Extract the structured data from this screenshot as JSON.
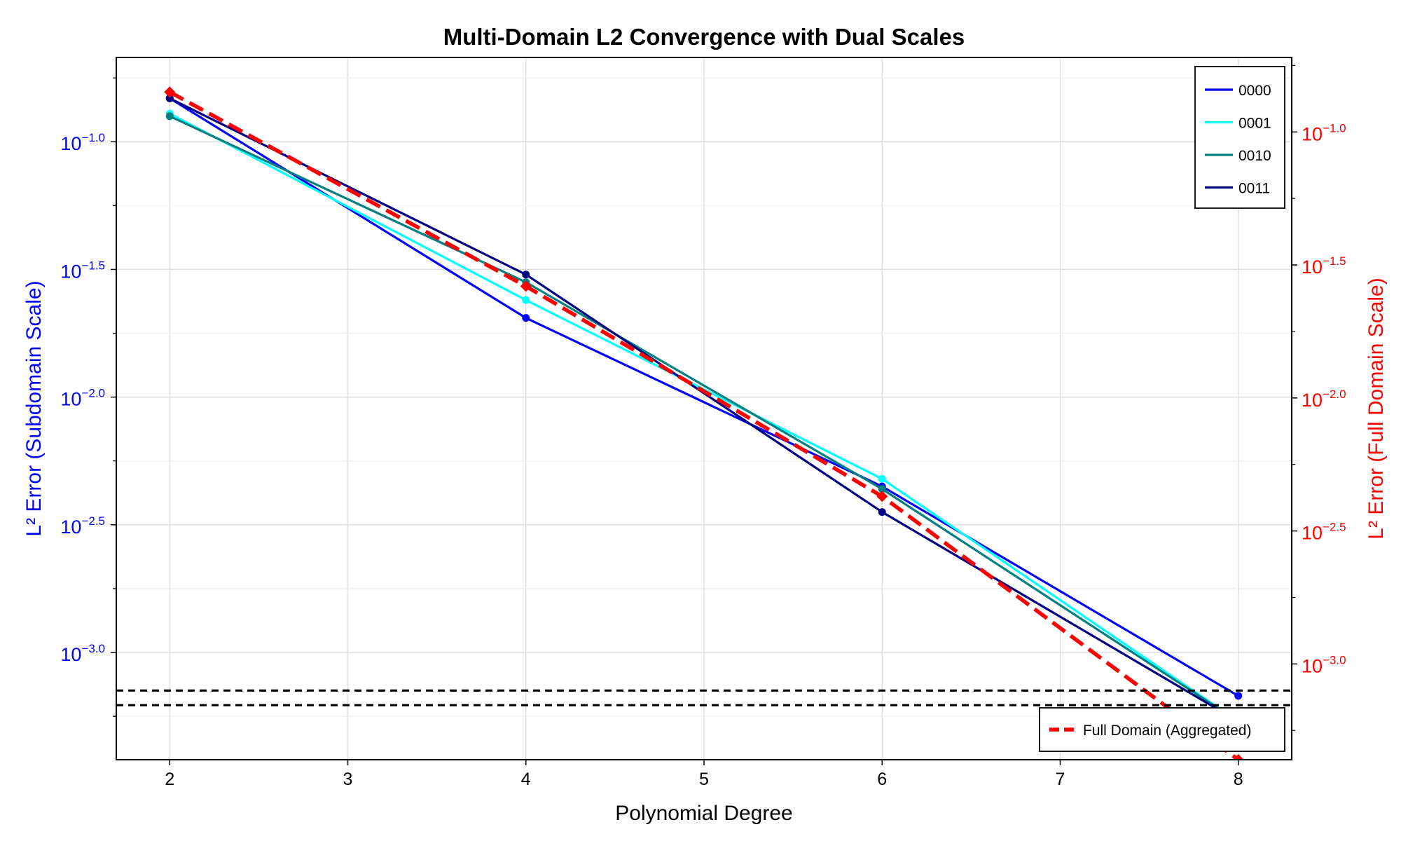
{
  "chart_data": {
    "type": "line",
    "title": "Multi-Domain L2 Convergence with Dual Scales",
    "xlabel": "Polynomial Degree",
    "ylabel_left": "L² Error (Subdomain Scale)",
    "ylabel_right": "L² Error (Full Domain Scale)",
    "xlim": [
      1.7,
      8.3
    ],
    "xticks": [
      2,
      3,
      4,
      5,
      6,
      7,
      8
    ],
    "left_axis": {
      "scale": "log10",
      "ylim_log10": [
        -3.42,
        -0.67
      ],
      "ticks": [
        {
          "exp": -1.0,
          "base": "10",
          "power": "−1.0"
        },
        {
          "exp": -1.5,
          "base": "10",
          "power": "−1.5"
        },
        {
          "exp": -2.0,
          "base": "10",
          "power": "−2.0"
        },
        {
          "exp": -2.5,
          "base": "10",
          "power": "−2.5"
        },
        {
          "exp": -3.0,
          "base": "10",
          "power": "−3.0"
        }
      ],
      "color": "#0000ff"
    },
    "right_axis": {
      "scale": "log10",
      "ylim_log10": [
        -3.36,
        -0.72
      ],
      "ticks": [
        {
          "exp": -1.0,
          "base": "10",
          "power": "−1.0"
        },
        {
          "exp": -1.5,
          "base": "10",
          "power": "−1.5"
        },
        {
          "exp": -2.0,
          "base": "10",
          "power": "−2.0"
        },
        {
          "exp": -2.5,
          "base": "10",
          "power": "−2.5"
        },
        {
          "exp": -3.0,
          "base": "10",
          "power": "−3.0"
        }
      ],
      "color": "#ff0000"
    },
    "series": [
      {
        "name": "0000",
        "color": "#0000ff",
        "x": [
          2,
          4,
          6,
          8
        ],
        "y_log10": [
          -0.83,
          -1.69,
          -2.35,
          -3.17
        ]
      },
      {
        "name": "0001",
        "color": "#00ffff",
        "x": [
          2,
          4,
          6,
          8
        ],
        "y_log10": [
          -0.89,
          -1.62,
          -2.32,
          -3.27
        ]
      },
      {
        "name": "0010",
        "color": "#008080",
        "x": [
          2,
          4,
          6,
          8
        ],
        "y_log10": [
          -0.9,
          -1.55,
          -2.36,
          -3.27
        ]
      },
      {
        "name": "0011",
        "color": "#000080",
        "x": [
          2,
          4,
          6,
          8
        ],
        "y_log10": [
          -0.83,
          -1.52,
          -2.45,
          -3.27
        ]
      }
    ],
    "aggregate": {
      "name": "Full Domain (Aggregated)",
      "color": "#ff0000",
      "axis": "right",
      "style": "dashed",
      "x": [
        2,
        4,
        6,
        8
      ],
      "y_log10_right": [
        -0.85,
        -1.58,
        -2.37,
        -3.36
      ]
    },
    "hlines_right_log10": [
      -3.1,
      -3.155
    ],
    "grid": true,
    "legend_top": "top-right",
    "legend_bottom": "bottom-right"
  }
}
